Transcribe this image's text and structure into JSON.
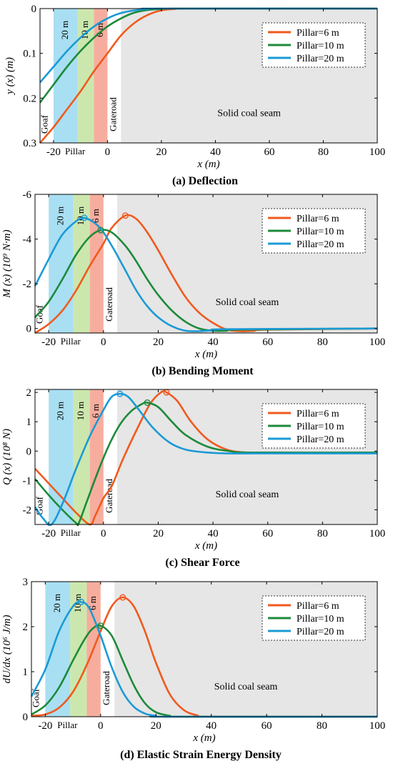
{
  "figure": {
    "colors": {
      "pillar_6": "#f05a1e",
      "pillar_10": "#1d8a3a",
      "pillar_20": "#1b9ad6",
      "band_20": "#a9dff2",
      "band_10": "#cce7ae",
      "band_6": "#f7ad9e",
      "solid_coal": "#e6e6e6"
    },
    "legend_placement": "top-right",
    "legend_labels": [
      "Pillar=6 m",
      "Pillar=10 m",
      "Pillar=20 m"
    ],
    "zone_labels": {
      "goaf": "Goaf",
      "pillar": "Pillar",
      "gateroad": "Gateroad",
      "solid": "Solid coal seam",
      "w20": "20 m",
      "w10": "10 m",
      "w6": "6 m"
    }
  },
  "chart_data": [
    {
      "type": "line",
      "caption": "(a) Deflection",
      "xlabel": "x (m)",
      "ylabel": "y (x) (m)",
      "xlim": [
        -25,
        100
      ],
      "ylim": [
        0.3,
        0
      ],
      "inverted_y": true,
      "x_ticks": [
        "-20",
        "0",
        "20",
        "40",
        "60",
        "80",
        "100"
      ],
      "y_ticks": [
        "0",
        "0.1",
        "0.2",
        "0.3"
      ],
      "bands": {
        "goaf_end": -20,
        "pillar_20": [
          -20,
          -11
        ],
        "pillar_10": [
          -11,
          -5
        ],
        "pillar_6": [
          -5,
          0
        ],
        "gateroad": [
          0,
          5
        ],
        "solid_start": 5
      },
      "series": [
        {
          "name": "Pillar=6 m",
          "color_key": "pillar_6",
          "x": [
            -25,
            -20,
            -15,
            -10,
            -5,
            0,
            5,
            10,
            15,
            20,
            25,
            30,
            100
          ],
          "y": [
            0.3,
            0.265,
            0.225,
            0.185,
            0.14,
            0.1,
            0.06,
            0.032,
            0.014,
            0.004,
            0.001,
            0,
            0
          ]
        },
        {
          "name": "Pillar=10 m",
          "color_key": "pillar_10",
          "x": [
            -25,
            -20,
            -15,
            -10,
            -5,
            0,
            5,
            10,
            15,
            20,
            25,
            100
          ],
          "y": [
            0.21,
            0.17,
            0.13,
            0.095,
            0.065,
            0.04,
            0.022,
            0.009,
            0.003,
            0.001,
            0,
            0
          ]
        },
        {
          "name": "Pillar=20 m",
          "color_key": "pillar_20",
          "x": [
            -25,
            -20,
            -15,
            -10,
            -5,
            0,
            5,
            10,
            15,
            20,
            100
          ],
          "y": [
            0.165,
            0.13,
            0.095,
            0.065,
            0.04,
            0.022,
            0.01,
            0.004,
            0.001,
            0,
            0
          ]
        }
      ],
      "markers": []
    },
    {
      "type": "line",
      "caption": "(b) Bending Moment",
      "xlabel": "x (m)",
      "ylabel": "M (x) (10⁹ N·m)",
      "xlim": [
        -25,
        100
      ],
      "ylim": [
        0.2,
        -6
      ],
      "inverted_y": true,
      "x_ticks": [
        "-20",
        "0",
        "20",
        "40",
        "60",
        "80",
        "100"
      ],
      "y_ticks": [
        "-6",
        "-4",
        "-2",
        "0"
      ],
      "bands": {
        "goaf_end": -20,
        "pillar_20": [
          -20,
          -11
        ],
        "pillar_10": [
          -11,
          -5
        ],
        "pillar_6": [
          -5,
          0
        ],
        "gateroad": [
          0,
          5
        ],
        "solid_start": 5
      },
      "series": [
        {
          "name": "Pillar=6 m",
          "color_key": "pillar_6",
          "x": [
            -25,
            -20,
            -15,
            -10,
            -5,
            0,
            3,
            8,
            12,
            16,
            20,
            25,
            30,
            35,
            40,
            45,
            50,
            55,
            60,
            100
          ],
          "y": [
            0.2,
            -0.2,
            -0.8,
            -1.7,
            -2.8,
            -3.8,
            -4.5,
            -5.05,
            -4.9,
            -4.3,
            -3.5,
            -2.4,
            -1.4,
            -0.7,
            -0.25,
            0.05,
            0.12,
            0.1,
            0.05,
            0
          ]
        },
        {
          "name": "Pillar=10 m",
          "color_key": "pillar_10",
          "x": [
            -25,
            -20,
            -15,
            -10,
            -5,
            -1,
            3,
            8,
            12,
            16,
            20,
            25,
            30,
            35,
            40,
            45,
            50,
            100
          ],
          "y": [
            -0.5,
            -1.2,
            -2.2,
            -3.3,
            -4.1,
            -4.4,
            -4.3,
            -3.7,
            -3.0,
            -2.2,
            -1.5,
            -0.8,
            -0.3,
            0,
            0.1,
            0.1,
            0.05,
            0
          ]
        },
        {
          "name": "Pillar=20 m",
          "color_key": "pillar_20",
          "x": [
            -25,
            -20,
            -15,
            -10,
            -7,
            -3,
            0,
            4,
            8,
            12,
            16,
            20,
            25,
            30,
            35,
            40,
            45,
            100
          ],
          "y": [
            -1.9,
            -3.1,
            -4.2,
            -4.8,
            -4.95,
            -4.7,
            -4.3,
            -3.5,
            -2.6,
            -1.7,
            -1.0,
            -0.5,
            -0.1,
            0.1,
            0.12,
            0.08,
            0.03,
            0
          ]
        }
      ],
      "markers": [
        {
          "series": "Pillar=6 m",
          "x": 8,
          "y": -5.05
        },
        {
          "series": "Pillar=10 m",
          "x": -1,
          "y": -4.4
        },
        {
          "series": "Pillar=20 m",
          "x": -7,
          "y": -4.95
        }
      ]
    },
    {
      "type": "line",
      "caption": "(c) Shear Force",
      "xlabel": "x (m)",
      "ylabel": "Q (x) (10⁸ N)",
      "xlim": [
        -25,
        100
      ],
      "ylim": [
        -2.5,
        2.1
      ],
      "inverted_y": false,
      "x_ticks": [
        "-20",
        "0",
        "20",
        "40",
        "60",
        "80",
        "100"
      ],
      "y_ticks": [
        "-2",
        "-1",
        "0",
        "1",
        "2"
      ],
      "bands": {
        "goaf_end": -20,
        "pillar_20": [
          -20,
          -11
        ],
        "pillar_10": [
          -11,
          -5
        ],
        "pillar_6": [
          -5,
          0
        ],
        "gateroad": [
          0,
          5
        ],
        "solid_start": 5
      },
      "series": [
        {
          "name": "Pillar=6 m",
          "color_key": "pillar_6",
          "x": [
            -25,
            -20,
            -15,
            -10,
            -5,
            -3,
            0,
            3,
            7,
            12,
            17,
            21,
            23,
            27,
            32,
            38,
            45,
            52,
            60,
            100
          ],
          "y": [
            -0.6,
            -1.1,
            -1.6,
            -2.1,
            -2.5,
            -2.2,
            -1.6,
            -1.2,
            -0.3,
            0.7,
            1.6,
            2.0,
            2.0,
            1.7,
            1.0,
            0.4,
            0.05,
            -0.05,
            -0.06,
            -0.06
          ]
        },
        {
          "name": "Pillar=10 m",
          "color_key": "pillar_10",
          "x": [
            -25,
            -20,
            -15,
            -10,
            -9,
            -6,
            -2,
            2,
            6,
            10,
            14,
            16,
            20,
            25,
            30,
            38,
            46,
            55,
            100
          ],
          "y": [
            -0.95,
            -1.5,
            -2.0,
            -2.45,
            -2.45,
            -1.7,
            -0.7,
            0.2,
            0.9,
            1.35,
            1.6,
            1.65,
            1.5,
            1.0,
            0.55,
            0.15,
            0,
            -0.05,
            -0.05
          ]
        },
        {
          "name": "Pillar=20 m",
          "color_key": "pillar_20",
          "x": [
            -25,
            -22,
            -19,
            -15,
            -10,
            -5,
            0,
            3,
            6,
            9,
            13,
            18,
            24,
            30,
            38,
            46,
            55,
            100
          ],
          "y": [
            -1.9,
            -2.3,
            -2.5,
            -1.8,
            -0.6,
            0.5,
            1.4,
            1.85,
            1.95,
            1.85,
            1.4,
            0.8,
            0.3,
            0.05,
            -0.05,
            -0.08,
            -0.08,
            -0.08
          ]
        }
      ],
      "markers": [
        {
          "series": "Pillar=6 m",
          "x": 23,
          "y": 2.0
        },
        {
          "series": "Pillar=10 m",
          "x": 16,
          "y": 1.65
        },
        {
          "series": "Pillar=20 m",
          "x": 6,
          "y": 1.95
        }
      ]
    },
    {
      "type": "line",
      "caption": "(d) Elastic Strain Energy Density",
      "xlabel": "x (m)",
      "ylabel": "dU/dx (10⁶ J/m)",
      "xlim": [
        -25,
        100
      ],
      "ylim": [
        0,
        3
      ],
      "inverted_y": false,
      "x_ticks": [
        "-20",
        "0",
        "20",
        "40",
        "60",
        "80",
        "100"
      ],
      "y_ticks": [
        "0",
        "1",
        "2",
        "3"
      ],
      "bands": {
        "goaf_end": -20,
        "pillar_20": [
          -20,
          -11
        ],
        "pillar_10": [
          -11,
          -5
        ],
        "pillar_6": [
          -5,
          0
        ],
        "gateroad": [
          0,
          5
        ],
        "solid_start": 5
      },
      "series": [
        {
          "name": "Pillar=6 m",
          "color_key": "pillar_6",
          "x": [
            -25,
            -20,
            -15,
            -10,
            -5,
            0,
            4,
            8,
            12,
            16,
            20,
            25,
            30,
            35,
            40,
            100
          ],
          "y": [
            0.02,
            0.05,
            0.2,
            0.55,
            1.15,
            1.9,
            2.45,
            2.65,
            2.45,
            1.9,
            1.2,
            0.5,
            0.15,
            0.03,
            0,
            0
          ]
        },
        {
          "name": "Pillar=10 m",
          "color_key": "pillar_10",
          "x": [
            -25,
            -20,
            -15,
            -10,
            -6,
            -3,
            0,
            4,
            8,
            12,
            16,
            20,
            25,
            30,
            100
          ],
          "y": [
            0.05,
            0.25,
            0.65,
            1.25,
            1.7,
            1.95,
            2.02,
            1.8,
            1.25,
            0.7,
            0.3,
            0.1,
            0.02,
            0,
            0
          ]
        },
        {
          "name": "Pillar=20 m",
          "color_key": "pillar_20",
          "x": [
            -25,
            -20,
            -15,
            -10,
            -7,
            -4,
            0,
            4,
            8,
            12,
            16,
            20,
            25,
            100
          ],
          "y": [
            0.45,
            1.05,
            1.9,
            2.45,
            2.55,
            2.4,
            1.8,
            1.1,
            0.55,
            0.22,
            0.07,
            0.02,
            0,
            0
          ]
        }
      ],
      "markers": [
        {
          "series": "Pillar=6 m",
          "x": 8,
          "y": 2.65
        },
        {
          "series": "Pillar=10 m",
          "x": 0,
          "y": 2.02
        },
        {
          "series": "Pillar=20 m",
          "x": -7,
          "y": 2.55
        }
      ]
    }
  ]
}
